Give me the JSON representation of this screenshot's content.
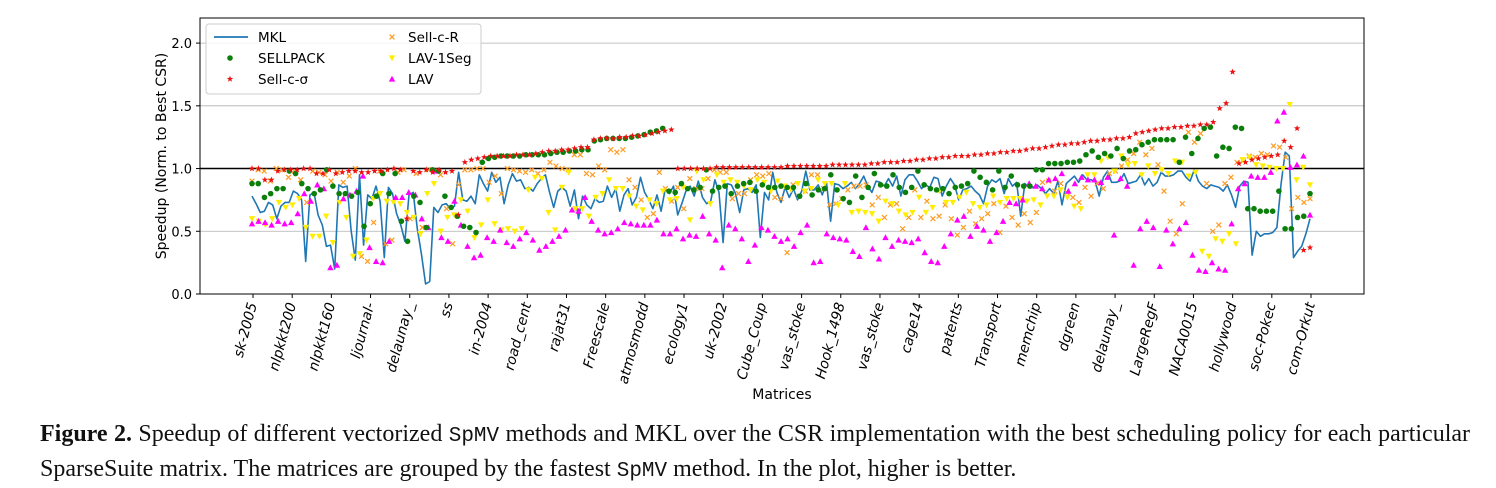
{
  "chart_data": {
    "type": "line+scatter",
    "xlabel": "Matrices",
    "ylabel": "Speedup (Norm. to Best CSR)",
    "ylim": [
      0.0,
      2.2
    ],
    "yticks": [
      "0.0",
      "0.5",
      "1.0",
      "1.5",
      "2.0"
    ],
    "reference_line": 1.0,
    "grid": "horizontal",
    "legend": {
      "placement": "top-left",
      "columns": 2
    },
    "categories": [
      "sk-2005",
      "nlpkkt200",
      "nlpkkt160",
      "ljournal-",
      "delaunay_",
      "ss",
      "in-2004",
      "road_cent",
      "rajat31",
      "Freescale",
      "atmosmodd",
      "ecology1",
      "uk-2002",
      "Cube_Coup",
      "vas_stoke",
      "Hook_1498",
      "vas_stoke",
      "cage14",
      "patents",
      "Transport",
      "memchip",
      "dgreen",
      "delaunay_",
      "LargeRegF",
      "NACA0015",
      "hollywood",
      "soc-Pokec",
      "com-Orkut"
    ],
    "series_styles": [
      {
        "name": "MKL",
        "marker": "line",
        "color": "#1f77b4"
      },
      {
        "name": "SELLPACK",
        "marker": "circle",
        "color": "#0a7f0a"
      },
      {
        "name": "Sell-c-σ",
        "marker": "star",
        "color": "#ee1111"
      },
      {
        "name": "Sell-c-R",
        "marker": "x",
        "color": "#ff9a1f"
      },
      {
        "name": "LAV-1Seg",
        "marker": "triangle-down",
        "color": "#ffee00"
      },
      {
        "name": "LAV",
        "marker": "triangle-up",
        "color": "#ff00ff"
      }
    ],
    "series": [
      {
        "name": "MKL",
        "values": [
          0.78,
          0.72,
          0.65,
          0.66,
          0.73,
          0.71,
          0.6,
          0.7,
          0.73,
          0.73,
          0.82,
          0.8,
          0.75,
          0.26,
          0.79,
          0.81,
          0.63,
          0.55,
          0.38,
          0.39,
          0.2,
          0.87,
          0.85,
          0.86,
          0.5,
          0.27,
          0.95,
          0.39,
          0.79,
          0.76,
          0.86,
          0.74,
          0.29,
          0.85,
          0.8,
          0.64,
          0.55,
          0.42,
          0.79,
          0.81,
          0.52,
          0.32,
          0.08,
          0.1,
          0.69,
          0.65,
          0.71,
          0.72,
          0.68,
          0.7,
          0.97,
          0.75,
          0.74,
          0.78,
          0.72,
          0.95,
          0.88,
          0.82,
          0.97,
          0.89,
          0.93,
          0.72,
          0.87,
          0.96,
          0.9,
          0.91,
          0.84,
          0.85,
          0.82,
          0.88,
          0.92,
          0.95,
          0.81,
          0.69,
          0.82,
          0.85,
          0.82,
          0.7,
          0.83,
          0.6,
          0.78,
          0.71,
          0.68,
          0.76,
          0.73,
          0.74,
          0.86,
          0.77,
          0.84,
          0.66,
          0.79,
          0.84,
          0.71,
          0.77,
          0.93,
          0.81,
          0.75,
          0.68,
          0.79,
          0.66,
          0.84,
          0.8,
          0.86,
          0.63,
          0.72,
          0.82,
          0.86,
          0.78,
          0.9,
          0.77,
          0.72,
          0.74,
          0.91,
          0.81,
          0.41,
          0.88,
          0.87,
          0.8,
          0.65,
          0.83,
          0.84,
          0.81,
          0.87,
          0.45,
          0.81,
          0.75,
          0.97,
          0.81,
          0.73,
          0.85,
          0.77,
          0.84,
          0.75,
          0.82,
          0.98,
          0.83,
          0.83,
          0.87,
          0.79,
          0.89,
          0.58,
          0.88,
          0.87,
          0.84,
          0.86,
          0.89,
          0.84,
          0.88,
          0.94,
          0.86,
          0.81,
          0.9,
          0.89,
          0.86,
          0.92,
          0.86,
          0.94,
          0.78,
          0.91,
          0.95,
          0.95,
          0.9,
          0.84,
          0.87,
          0.85,
          0.93,
          0.92,
          0.78,
          0.86,
          0.92,
          0.87,
          0.75,
          0.83,
          0.84,
          0.86,
          0.82,
          0.79,
          0.72,
          0.86,
          0.91,
          0.89,
          0.92,
          0.8,
          0.92,
          0.86,
          0.89,
          0.62,
          0.88,
          0.85,
          0.85,
          0.87,
          0.84,
          0.8,
          0.84,
          0.8,
          0.9,
          0.71,
          0.88,
          0.91,
          0.94,
          0.89,
          0.95,
          0.91,
          0.91,
          0.9,
          0.78,
          0.93,
          0.98,
          0.89,
          0.89,
          0.9,
          0.96,
          0.88,
          0.89,
          0.9,
          0.95,
          0.87,
          0.92,
          0.86,
          0.89,
          0.97,
          0.94,
          0.94,
          0.95,
          0.98,
          0.98,
          0.93,
          0.9,
          0.99,
          0.9,
          0.86,
          0.84,
          0.87,
          0.86,
          0.85,
          0.82,
          0.87,
          0.79,
          0.69,
          0.86,
          0.9,
          0.89,
          0.31,
          0.5,
          0.46,
          0.48,
          0.48,
          0.49,
          0.53,
          0.88,
          1.13,
          1.1,
          0.29,
          0.34,
          0.38,
          0.48,
          0.6
        ]
      },
      {
        "name": "SELLPACK",
        "values": [
          0.88,
          0.88,
          0.77,
          0.8,
          0.84,
          0.84,
          0.98,
          0.96,
          0.88,
          0.84,
          0.8,
          0.83,
          0.99,
          0.86,
          0.8,
          0.8,
          0.78,
          0.81,
          0.54,
          0.72,
          0.78,
          0.96,
          0.8,
          0.96,
          0.58,
          0.42,
          0.78,
          0.73,
          0.53,
          0.99,
          0.98,
          0.78,
          0.69,
          0.62,
          0.54,
          0.53,
          0.49,
          1.05,
          1.08,
          1.09,
          1.1,
          1.1,
          1.1,
          1.1,
          1.11,
          1.11,
          1.11,
          1.11,
          1.12,
          1.13,
          1.13,
          1.14,
          1.14,
          1.15,
          1.15,
          1.22,
          1.23,
          1.24,
          1.24,
          1.24,
          1.24,
          1.25,
          1.26,
          1.27,
          1.29,
          1.3,
          1.32,
          0.82,
          0.81,
          0.88,
          0.84,
          0.83,
          0.85,
          0.99,
          0.82,
          0.85,
          0.86,
          0.8,
          0.86,
          0.88,
          0.89,
          0.82,
          0.87,
          0.85,
          0.85,
          0.86,
          0.85,
          0.85,
          0.78,
          0.88,
          0.79,
          0.83,
          0.84,
          0.95,
          0.83,
          0.76,
          0.73,
          0.94,
          0.77,
          0.85,
          0.96,
          0.87,
          0.86,
          0.95,
          0.85,
          0.81,
          0.85,
          0.98,
          0.87,
          0.84,
          0.83,
          0.84,
          0.8,
          0.85,
          0.86,
          0.88,
          0.98,
          0.93,
          0.89,
          0.83,
          0.98,
          0.85,
          0.94,
          0.87,
          0.86,
          0.86,
          0.99,
          0.99,
          1.04,
          1.04,
          1.04,
          1.05,
          1.05,
          1.06,
          1.11,
          1.14,
          1.09,
          1.12,
          1.1,
          1.16,
          1.08,
          1.14,
          1.15,
          1.19,
          1.21,
          1.23,
          1.23,
          1.23,
          1.23,
          1.05,
          1.25,
          1.12,
          1.24,
          1.32,
          1.33,
          1.1,
          1.17,
          1.16,
          1.33,
          1.32,
          0.68,
          0.68,
          0.66,
          0.66,
          0.66,
          0.82,
          0.52,
          0.52,
          0.61,
          0.62,
          0.8
        ]
      },
      {
        "name": "Sell-c-σ",
        "values": [
          1.0,
          1.0,
          0.91,
          0.91,
          0.98,
          0.99,
          0.99,
          0.99,
          1.0,
          1.0,
          0.96,
          0.96,
          0.99,
          0.96,
          0.97,
          0.98,
          0.98,
          0.97,
          0.97,
          0.98,
          0.98,
          0.99,
          1.0,
          0.99,
          0.6,
          0.98,
          0.97,
          0.99,
          0.97,
          0.99,
          0.97,
          0.98,
          0.63,
          1.05,
          1.07,
          1.08,
          1.09,
          1.1,
          1.1,
          1.1,
          1.1,
          1.11,
          1.11,
          1.11,
          1.12,
          1.13,
          1.14,
          1.14,
          1.15,
          1.15,
          1.16,
          1.17,
          1.17,
          1.23,
          1.24,
          1.24,
          1.24,
          1.25,
          1.25,
          1.26,
          1.26,
          1.27,
          1.28,
          1.29,
          1.3,
          1.31,
          1.0,
          1.0,
          1.0,
          1.0,
          1.0,
          1.0,
          1.01,
          1.01,
          1.01,
          1.01,
          1.01,
          1.01,
          1.01,
          1.01,
          1.01,
          1.01,
          1.01,
          1.02,
          1.02,
          1.02,
          1.02,
          1.02,
          1.02,
          1.02,
          1.03,
          1.03,
          1.03,
          1.03,
          1.03,
          1.03,
          1.04,
          1.04,
          1.05,
          1.05,
          1.05,
          1.06,
          1.06,
          1.07,
          1.07,
          1.08,
          1.08,
          1.09,
          1.09,
          1.1,
          1.1,
          1.1,
          1.11,
          1.11,
          1.12,
          1.12,
          1.13,
          1.13,
          1.14,
          1.14,
          1.15,
          1.16,
          1.16,
          1.17,
          1.18,
          1.19,
          1.19,
          1.2,
          1.2,
          1.21,
          1.22,
          1.22,
          1.23,
          1.23,
          1.24,
          1.24,
          1.25,
          1.28,
          1.29,
          1.3,
          1.31,
          1.32,
          1.32,
          1.33,
          1.33,
          1.34,
          1.34,
          1.35,
          1.35,
          1.37,
          1.48,
          1.52,
          1.77,
          1.04,
          1.05,
          1.07,
          1.08,
          1.09,
          1.1,
          1.11,
          1.22,
          1.17,
          1.32,
          0.35,
          0.37
        ]
      },
      {
        "name": "Sell-c-R",
        "values": [
          0.9,
          0.99,
          0.98,
          0.9,
          1.0,
          0.99,
          0.93,
          0.98,
          0.91,
          0.73,
          0.98,
          0.97,
          0.95,
          0.9,
          0.97,
          0.89,
          0.94,
          1.0,
          0.3,
          0.26,
          0.57,
          0.98,
          0.4,
          0.43,
          0.97,
          0.99,
          0.6,
          0.96,
          0.53,
          0.99,
          0.98,
          0.95,
          0.68,
          0.4,
          0.87,
          0.99,
          0.99,
          1.0,
          1.0,
          0.89,
          0.94,
          0.8,
          1.0,
          0.99,
          0.98,
          0.97,
          0.99,
          0.96,
          0.99,
          1.05,
          1.02,
          1.0,
          0.99,
          1.11,
          1.11,
          0.96,
          0.95,
          1.02,
          0.99,
          1.15,
          1.13,
          1.15,
          0.91,
          0.85,
          0.75,
          0.61,
          0.64,
          0.97,
          0.84,
          0.74,
          0.85,
          0.68,
          0.92,
          0.84,
          0.84,
          0.92,
          0.99,
          0.97,
          0.97,
          0.76,
          0.8,
          0.8,
          0.91,
          0.95,
          0.94,
          0.96,
          0.77,
          0.76,
          0.33,
          0.87,
          0.78,
          0.82,
          0.95,
          0.95,
          0.84,
          0.71,
          0.72,
          0.76,
          0.83,
          0.86,
          0.86,
          0.87,
          0.71,
          0.77,
          0.61,
          0.71,
          0.72,
          0.52,
          0.61,
          0.83,
          0.61,
          0.74,
          0.6,
          0.62,
          0.71,
          0.6,
          0.47,
          0.53,
          0.66,
          0.56,
          0.6,
          0.64,
          0.72,
          0.49,
          0.7,
          0.61,
          0.55,
          0.64,
          0.57,
          0.65,
          0.89,
          0.9,
          0.82,
          0.88,
          0.81,
          0.77,
          0.73,
          0.85,
          0.78,
          0.88,
          0.84,
          0.96,
          0.98,
          1.02,
          1.07,
          1.12,
          1.21,
          1.11,
          1.16,
          1.03,
          0.82,
          0.58,
          0.48,
          0.72,
          1.29,
          1.21,
          1.28,
          0.88,
          0.5,
          0.55,
          0.88,
          0.93,
          1.05,
          1.07,
          1.1,
          1.09,
          1.12,
          1.11,
          1.18,
          1.17,
          1.09,
          0.68,
          0.77,
          0.73,
          0.76
        ]
      },
      {
        "name": "LAV-1Seg",
        "values": [
          0.6,
          0.58,
          0.55,
          0.6,
          0.73,
          0.69,
          0.71,
          0.76,
          0.53,
          0.46,
          0.46,
          0.62,
          0.41,
          0.73,
          0.61,
          0.3,
          0.32,
          0.43,
          0.76,
          0.8,
          0.74,
          0.73,
          0.72,
          0.65,
          0.61,
          0.48,
          0.8,
          0.88,
          0.5,
          0.61,
          0.63,
          0.75,
          0.66,
          0.45,
          0.55,
          0.75,
          0.56,
          0.51,
          0.52,
          0.5,
          0.52,
          0.83,
          0.93,
          0.92,
          0.65,
          0.51,
          0.85,
          0.97,
          0.68,
          0.68,
          0.62,
          0.77,
          0.8,
          0.91,
          0.84,
          0.84,
          0.78,
          0.7,
          0.67,
          0.75,
          0.72,
          0.82,
          0.75,
          0.76,
          0.85,
          0.59,
          0.98,
          0.91,
          0.72,
          0.95,
          0.89,
          0.91,
          0.89,
          0.86,
          0.83,
          0.91,
          0.89,
          0.82,
          0.9,
          0.86,
          0.83,
          0.88,
          0.82,
          0.84,
          0.91,
          0.88,
          0.88,
          0.71,
          0.88,
          0.65,
          0.66,
          0.65,
          0.64,
          0.58,
          0.74,
          0.72,
          0.66,
          0.63,
          0.65,
          0.77,
          0.65,
          0.69,
          0.82,
          0.73,
          0.73,
          0.77,
          0.81,
          0.72,
          0.69,
          0.71,
          0.78,
          0.73,
          0.76,
          0.76,
          0.76,
          0.74,
          0.75,
          0.71,
          0.78,
          0.78,
          0.83,
          0.77,
          0.7,
          0.68,
          0.95,
          0.95,
          1.06,
          1.09,
          0.98,
          1.1,
          1.03,
          1.04,
          0.95,
          1.02,
          0.96,
          0.99,
          0.96,
          1.06,
          1.05,
          0.94,
          0.97,
          0.34,
          0.3,
          0.44,
          0.42,
          0.48,
          0.4,
          1.07,
          1.09,
          1.03,
          1.02,
          1.01,
          1.0,
          1.0,
          1.51,
          0.91,
          1.01,
          0.87
        ]
      },
      {
        "name": "LAV",
        "values": [
          0.56,
          0.58,
          0.57,
          0.55,
          0.58,
          0.56,
          0.57,
          0.64,
          0.8,
          0.74,
          0.87,
          0.84,
          0.21,
          0.23,
          0.76,
          0.79,
          0.82,
          0.94,
          0.37,
          0.26,
          0.25,
          0.42,
          0.77,
          0.77,
          0.81,
          0.79,
          0.6,
          0.53,
          0.98,
          0.45,
          0.42,
          0.74,
          0.55,
          0.38,
          0.29,
          0.31,
          0.45,
          0.42,
          0.51,
          0.41,
          0.38,
          0.44,
          0.49,
          0.43,
          0.35,
          0.38,
          0.42,
          0.46,
          0.51,
          0.67,
          0.66,
          0.77,
          0.58,
          0.51,
          0.48,
          0.49,
          0.52,
          0.57,
          0.56,
          0.55,
          0.55,
          0.55,
          0.59,
          0.48,
          0.48,
          0.52,
          0.44,
          0.47,
          0.46,
          0.62,
          0.48,
          0.43,
          0.21,
          0.55,
          0.52,
          0.44,
          0.26,
          0.39,
          0.53,
          0.51,
          0.46,
          0.42,
          0.44,
          0.38,
          0.49,
          0.55,
          0.25,
          0.26,
          0.48,
          0.45,
          0.44,
          0.43,
          0.34,
          0.3,
          0.53,
          0.36,
          0.28,
          0.45,
          0.38,
          0.43,
          0.42,
          0.41,
          0.44,
          0.33,
          0.26,
          0.25,
          0.38,
          0.48,
          0.59,
          0.62,
          0.46,
          0.54,
          0.51,
          0.42,
          0.49,
          0.58,
          0.73,
          0.72,
          0.75,
          0.88,
          0.86,
          0.84,
          0.91,
          0.92,
          0.96,
          0.82,
          0.88,
          0.93,
          0.91,
          0.91,
          0.89,
          0.93,
          0.47,
          0.92,
          0.86,
          0.23,
          0.52,
          0.58,
          0.53,
          0.22,
          0.51,
          0.4,
          0.52,
          0.57,
          0.31,
          0.19,
          0.18,
          0.25,
          0.2,
          0.19,
          0.56,
          0.84,
          0.88,
          0.94,
          0.93,
          0.93,
          0.97,
          1.38,
          1.45,
          1.01,
          1.03,
          1.1,
          0.63
        ]
      }
    ]
  },
  "caption": {
    "label": "Figure 2.",
    "parts": [
      {
        "text": " Speedup of different vectorized ",
        "mono": false
      },
      {
        "text": "SpMV",
        "mono": true
      },
      {
        "text": " methods and MKL over the CSR implementation with the best scheduling policy for each particular SparseSuite matrix. The matrices are grouped by the fastest ",
        "mono": false
      },
      {
        "text": "SpMV",
        "mono": true
      },
      {
        "text": " method. In the plot, higher is better.",
        "mono": false
      }
    ]
  }
}
